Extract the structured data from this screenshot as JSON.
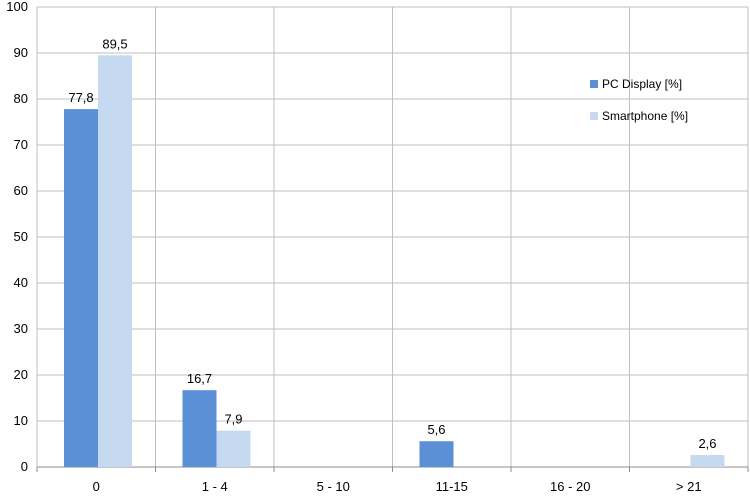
{
  "chart_data": {
    "type": "bar",
    "categories": [
      "0",
      "1 - 4",
      "5 - 10",
      "11-15",
      "16 - 20",
      "> 21"
    ],
    "series": [
      {
        "name": "PC Display [%]",
        "values": [
          77.8,
          16.7,
          null,
          5.6,
          null,
          null
        ],
        "labels": [
          "77,8",
          "16,7",
          "",
          "5,6",
          "",
          ""
        ],
        "color": "#5b8fd6"
      },
      {
        "name": "Smartphone [%]",
        "values": [
          89.5,
          7.9,
          null,
          null,
          null,
          2.6
        ],
        "labels": [
          "89,5",
          "7,9",
          "",
          "",
          "",
          "2,6"
        ],
        "color": "#c5d9f1"
      }
    ],
    "ylim": [
      0,
      100
    ],
    "yticks": [
      0,
      10,
      20,
      30,
      40,
      50,
      60,
      70,
      80,
      90,
      100
    ],
    "grid": true,
    "legend_position": "right",
    "title": "",
    "xlabel": "",
    "ylabel": ""
  }
}
